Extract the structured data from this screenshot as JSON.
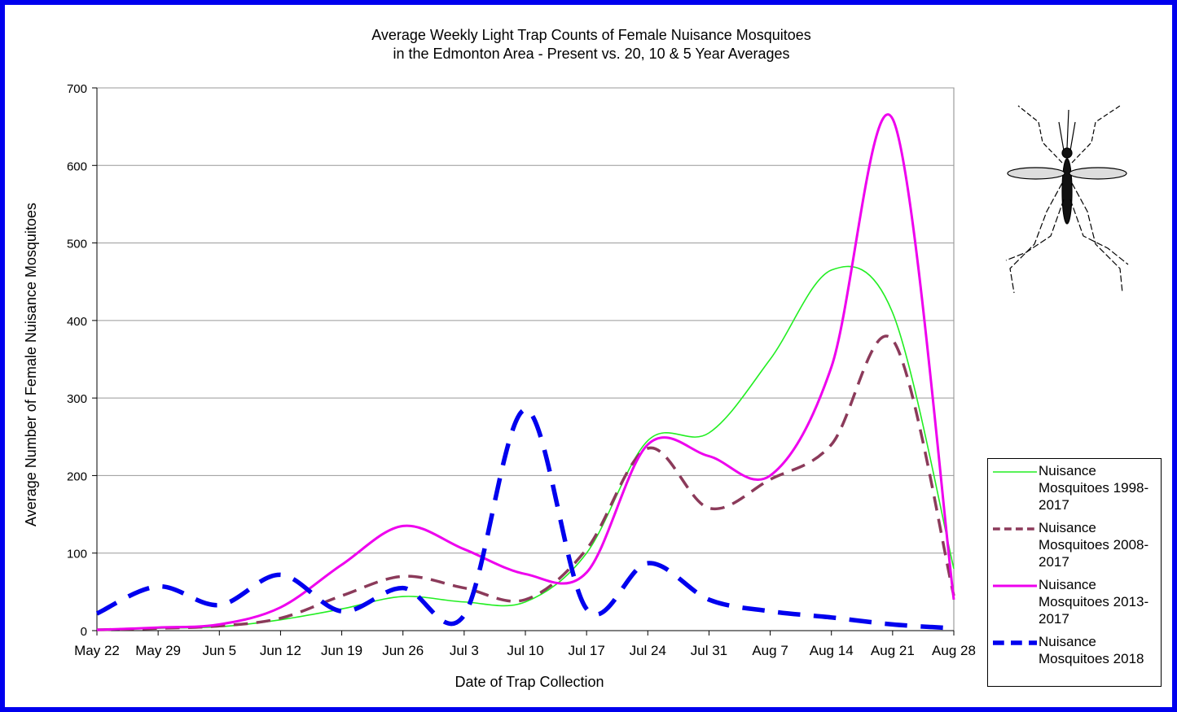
{
  "chart_data": {
    "type": "line",
    "title": "Average Weekly Light Trap Counts of Female Nuisance Mosquitoes",
    "subtitle": "in the Edmonton Area - Present vs. 20, 10 & 5 Year Averages",
    "x_label": "Date of Trap Collection",
    "y_label": "Average Number of Female Nuisance Mosquitoes",
    "categories": [
      "May 22",
      "May 29",
      "Jun 5",
      "Jun 12",
      "Jun 19",
      "Jun 26",
      "Jul 3",
      "Jul 10",
      "Jul 17",
      "Jul 24",
      "Jul 31",
      "Aug 7",
      "Aug 14",
      "Aug 21",
      "Aug 28"
    ],
    "series": [
      {
        "name": "Nuisance Mosquitoes 1998-2017",
        "color": "#22ee22",
        "line_style": "solid",
        "values": [
          1,
          3,
          5,
          14,
          28,
          44,
          37,
          37,
          100,
          245,
          255,
          350,
          465,
          410,
          80
        ]
      },
      {
        "name": "Nuisance Mosquitoes 2008-2017",
        "color": "#8b3a5a",
        "line_style": "dashed",
        "values": [
          1,
          3,
          6,
          16,
          45,
          70,
          55,
          40,
          105,
          235,
          158,
          195,
          240,
          375,
          45
        ]
      },
      {
        "name": "Nuisance Mosquitoes 2013-2017",
        "color": "#ee00ee",
        "line_style": "solid",
        "values": [
          1,
          4,
          8,
          30,
          85,
          135,
          105,
          73,
          75,
          240,
          225,
          200,
          340,
          660,
          40
        ]
      },
      {
        "name": "Nuisance Mosquitoes 2018",
        "color": "#0000ee",
        "line_style": "dashed",
        "values": [
          22,
          57,
          33,
          72,
          25,
          55,
          20,
          285,
          28,
          87,
          40,
          25,
          17,
          8,
          3
        ]
      }
    ],
    "ylim": [
      0,
      700
    ],
    "yticks": [
      0,
      100,
      200,
      300,
      400,
      500,
      600,
      700
    ],
    "grid": true
  }
}
